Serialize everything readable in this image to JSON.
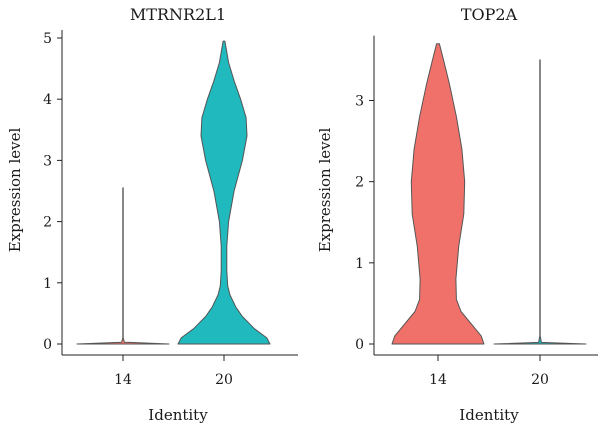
{
  "chart_data": [
    {
      "type": "violin",
      "title": "MTRNR2L1",
      "xlabel": "Identity",
      "ylabel": "Expression level",
      "categories": [
        "14",
        "20"
      ],
      "ylim": [
        0,
        5
      ],
      "yticks": [
        "0",
        "1",
        "2",
        "3",
        "4",
        "5"
      ],
      "colors": [
        "#F8766D",
        "#1FB9BE"
      ],
      "series": [
        {
          "category": "14",
          "max": 2.55,
          "density": [
            [
              0,
              1.0
            ],
            [
              0.03,
              0.03
            ],
            [
              0.1,
              0.004
            ],
            [
              2.55,
              0.004
            ]
          ]
        },
        {
          "category": "20",
          "max": 4.95,
          "density": [
            [
              0,
              1.0
            ],
            [
              0.1,
              0.93
            ],
            [
              0.25,
              0.66
            ],
            [
              0.45,
              0.4
            ],
            [
              0.6,
              0.26
            ],
            [
              0.8,
              0.13
            ],
            [
              0.95,
              0.08
            ],
            [
              1.2,
              0.06
            ],
            [
              1.6,
              0.06
            ],
            [
              2.0,
              0.1
            ],
            [
              2.5,
              0.22
            ],
            [
              3.0,
              0.4
            ],
            [
              3.4,
              0.5
            ],
            [
              3.7,
              0.48
            ],
            [
              4.0,
              0.36
            ],
            [
              4.3,
              0.22
            ],
            [
              4.6,
              0.1
            ],
            [
              4.95,
              0.02
            ]
          ]
        }
      ]
    },
    {
      "type": "violin",
      "title": "TOP2A",
      "xlabel": "Identity",
      "ylabel": "Expression level",
      "categories": [
        "14",
        "20"
      ],
      "ylim": [
        0,
        3.7
      ],
      "yticks": [
        "0",
        "1",
        "2",
        "3"
      ],
      "colors": [
        "#F0716A",
        "#1FB9BE"
      ],
      "series": [
        {
          "category": "14",
          "max": 3.7,
          "density": [
            [
              0,
              1.0
            ],
            [
              0.1,
              0.94
            ],
            [
              0.25,
              0.72
            ],
            [
              0.4,
              0.5
            ],
            [
              0.55,
              0.4
            ],
            [
              0.8,
              0.39
            ],
            [
              1.2,
              0.45
            ],
            [
              1.6,
              0.56
            ],
            [
              2.0,
              0.58
            ],
            [
              2.4,
              0.52
            ],
            [
              2.8,
              0.4
            ],
            [
              3.2,
              0.25
            ],
            [
              3.5,
              0.12
            ],
            [
              3.7,
              0.03
            ]
          ]
        },
        {
          "category": "20",
          "max": 3.5,
          "density": [
            [
              0,
              1.0
            ],
            [
              0.02,
              0.03
            ],
            [
              0.1,
              0.004
            ],
            [
              3.5,
              0.004
            ]
          ]
        }
      ]
    }
  ]
}
